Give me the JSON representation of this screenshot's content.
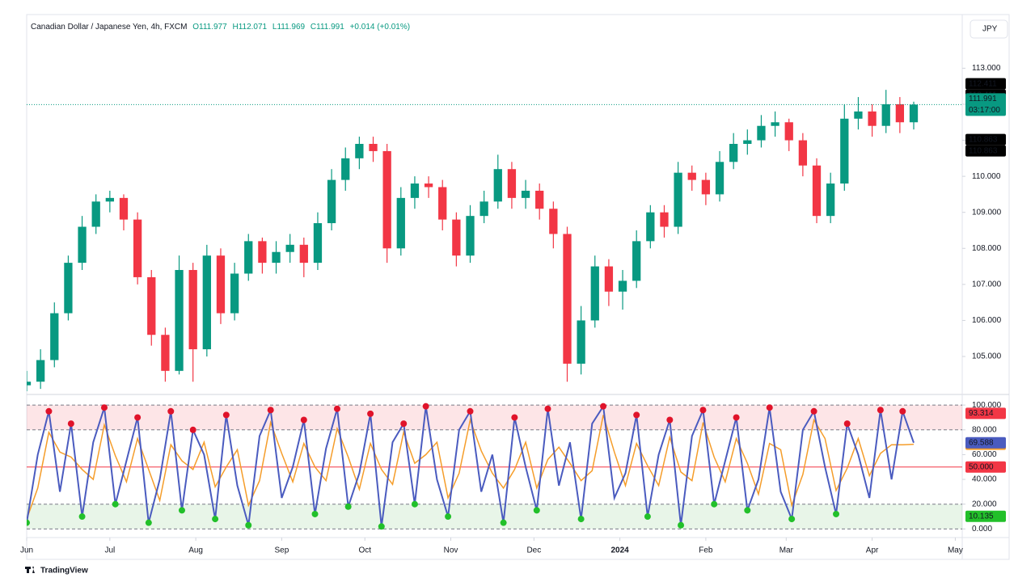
{
  "header": {
    "symbol": "Canadian Dollar / Japanese Yen, 4h, FXCM",
    "ohlc": [
      "O111.977",
      "H112.071",
      "L111.969",
      "C111.991",
      "+0.014 (+0.01%)"
    ],
    "currency": "JPY"
  },
  "chart_data": [
    {
      "type": "candlestick",
      "x": [
        0,
        5,
        10,
        15,
        20,
        25,
        30,
        35,
        40,
        45,
        50,
        55,
        60,
        65,
        70,
        75,
        80,
        85,
        90,
        95,
        100,
        105,
        110,
        115,
        120,
        125,
        130,
        135,
        140,
        145,
        150,
        155,
        160,
        165,
        170,
        175,
        180,
        185,
        190,
        195,
        200,
        205,
        210,
        215,
        220,
        225,
        230,
        235,
        240,
        245,
        250,
        255,
        260,
        265,
        270,
        275,
        280,
        285,
        290,
        295,
        300,
        305,
        310,
        315,
        320
      ],
      "open": [
        104.2,
        104.3,
        104.9,
        106.2,
        107.6,
        108.6,
        109.3,
        109.4,
        108.8,
        107.2,
        105.6,
        104.6,
        107.4,
        105.2,
        107.8,
        106.2,
        107.3,
        108.2,
        107.6,
        107.9,
        108.1,
        107.6,
        108.7,
        109.9,
        110.5,
        110.9,
        110.7,
        108.0,
        109.4,
        109.8,
        109.7,
        108.8,
        107.8,
        108.9,
        109.3,
        110.2,
        109.4,
        109.6,
        109.1,
        108.4,
        104.8,
        106.0,
        107.5,
        106.8,
        107.1,
        108.2,
        109.0,
        108.6,
        110.1,
        109.9,
        109.5,
        110.4,
        110.9,
        111.0,
        111.4,
        111.5,
        111.0,
        110.3,
        108.9,
        109.8,
        111.6,
        111.8,
        111.4,
        112.0,
        111.5
      ],
      "high": [
        104.6,
        105.2,
        106.5,
        107.8,
        108.9,
        109.5,
        109.6,
        109.5,
        109.0,
        107.4,
        105.8,
        107.8,
        107.6,
        108.1,
        108.0,
        107.6,
        108.4,
        108.3,
        108.2,
        108.4,
        108.3,
        109.0,
        110.2,
        110.8,
        111.1,
        111.1,
        110.9,
        109.7,
        110.0,
        110.0,
        109.9,
        109.0,
        109.2,
        109.6,
        110.6,
        110.4,
        109.9,
        109.8,
        109.3,
        108.6,
        106.4,
        107.8,
        107.7,
        107.4,
        108.5,
        109.2,
        109.2,
        110.4,
        110.3,
        110.1,
        110.7,
        111.2,
        111.3,
        111.7,
        111.8,
        111.6,
        111.2,
        110.5,
        110.1,
        112.0,
        112.2,
        112.0,
        112.4,
        112.2,
        112.071
      ],
      "low": [
        104.0,
        104.1,
        104.7,
        106.0,
        107.4,
        108.4,
        109.0,
        108.5,
        107.0,
        105.3,
        104.3,
        104.5,
        104.3,
        105.0,
        105.9,
        106.0,
        107.1,
        107.3,
        107.3,
        107.6,
        107.2,
        107.4,
        108.5,
        109.6,
        110.2,
        110.4,
        107.6,
        107.8,
        109.1,
        109.4,
        108.5,
        107.5,
        107.6,
        108.7,
        109.1,
        109.1,
        109.1,
        108.8,
        108.0,
        104.3,
        104.5,
        105.8,
        106.4,
        106.3,
        106.9,
        108.0,
        108.3,
        108.4,
        109.6,
        109.2,
        109.3,
        110.2,
        110.6,
        110.8,
        111.1,
        110.7,
        110.0,
        108.7,
        108.7,
        109.6,
        111.3,
        111.1,
        111.2,
        111.2,
        111.3
      ],
      "close": [
        104.3,
        104.9,
        106.2,
        107.6,
        108.6,
        109.3,
        109.4,
        108.8,
        107.2,
        105.6,
        104.6,
        107.4,
        105.2,
        107.8,
        106.2,
        107.3,
        108.2,
        107.6,
        107.9,
        108.1,
        107.6,
        108.7,
        109.9,
        110.5,
        110.9,
        110.7,
        108.0,
        109.4,
        109.8,
        109.7,
        108.8,
        107.8,
        108.9,
        109.3,
        110.2,
        109.4,
        109.6,
        109.1,
        108.4,
        104.8,
        106.0,
        107.5,
        106.8,
        107.1,
        108.2,
        109.0,
        108.6,
        110.1,
        109.9,
        109.5,
        110.4,
        110.9,
        111.0,
        111.4,
        111.5,
        111.0,
        110.3,
        108.9,
        109.8,
        111.6,
        111.8,
        111.4,
        112.0,
        111.5,
        111.991
      ],
      "up_color": "#089981",
      "down_color": "#f23645",
      "xlim": [
        0,
        337.5
      ],
      "xticks": [
        {
          "value": 0,
          "label": "Jun"
        },
        {
          "value": 30,
          "label": "Jul"
        },
        {
          "value": 61,
          "label": "Aug"
        },
        {
          "value": 92,
          "label": "Sep"
        },
        {
          "value": 122,
          "label": "Oct"
        },
        {
          "value": 153,
          "label": "Nov"
        },
        {
          "value": 183,
          "label": "Dec"
        },
        {
          "value": 214,
          "label": "2024"
        },
        {
          "value": 245,
          "label": "Feb"
        },
        {
          "value": 274,
          "label": "Mar"
        },
        {
          "value": 305,
          "label": "Apr"
        },
        {
          "value": 335,
          "label": "May"
        }
      ],
      "ylim": [
        104.08,
        114.4
      ],
      "yticks": [
        {
          "value": 105,
          "label": "105.000"
        },
        {
          "value": 106,
          "label": "106.000"
        },
        {
          "value": 107,
          "label": "107.000"
        },
        {
          "value": 108,
          "label": "108.000"
        },
        {
          "value": 109,
          "label": "109.000"
        },
        {
          "value": 110,
          "label": "110.000"
        },
        {
          "value": 111,
          "label": "111.000"
        },
        {
          "value": 112,
          "label": "112.000"
        },
        {
          "value": 113,
          "label": "113.000"
        }
      ],
      "price_markers": [
        112.411,
        112.411,
        110.863,
        110.863
      ],
      "countdown": "03:17:00",
      "grid": false
    },
    {
      "type": "line",
      "x": [
        0,
        4,
        8,
        12,
        16,
        20,
        24,
        28,
        32,
        36,
        40,
        44,
        48,
        52,
        56,
        60,
        64,
        68,
        72,
        76,
        80,
        84,
        88,
        92,
        96,
        100,
        104,
        108,
        112,
        116,
        120,
        124,
        128,
        132,
        136,
        140,
        144,
        148,
        152,
        156,
        160,
        164,
        168,
        172,
        176,
        180,
        184,
        188,
        192,
        196,
        200,
        204,
        208,
        212,
        216,
        220,
        224,
        228,
        232,
        236,
        240,
        244,
        248,
        252,
        256,
        260,
        264,
        268,
        272,
        276,
        280,
        284,
        288,
        292,
        296,
        300,
        304,
        308,
        312,
        316,
        320
      ],
      "series": [
        {
          "color": "#f59d2a",
          "values": [
            8,
            33,
            78,
            62,
            58,
            48,
            40,
            84,
            59,
            38,
            73,
            48,
            23,
            68,
            55,
            48,
            70,
            34,
            50,
            64,
            19,
            39,
            86,
            61,
            38,
            69,
            50,
            39,
            81,
            58,
            32,
            69,
            48,
            36,
            78,
            53,
            60,
            70,
            25,
            45,
            88,
            63,
            45,
            33,
            48,
            70,
            33,
            56,
            66,
            53,
            39,
            47,
            92,
            62,
            35,
            69,
            51,
            35,
            74,
            46,
            39,
            86,
            58,
            38,
            73,
            53,
            28,
            69,
            64,
            19,
            44,
            88,
            73,
            31,
            49,
            73,
            43,
            61,
            68,
            68,
            68.341
          ]
        },
        {
          "color": "#4a5bbf",
          "values": [
            5,
            60,
            95,
            30,
            85,
            10,
            70,
            98,
            20,
            55,
            90,
            5,
            40,
            95,
            15,
            80,
            60,
            8,
            92,
            35,
            3,
            75,
            96,
            25,
            50,
            88,
            12,
            65,
            97,
            18,
            45,
            93,
            2,
            70,
            85,
            20,
            99,
            40,
            10,
            80,
            95,
            30,
            60,
            5,
            90,
            50,
            15,
            97,
            35,
            70,
            8,
            85,
            99,
            25,
            45,
            92,
            10,
            60,
            88,
            3,
            75,
            96,
            20,
            55,
            90,
            15,
            40,
            98,
            30,
            8,
            80,
            95,
            50,
            12,
            85,
            60,
            25,
            96,
            40,
            95,
            69.588
          ]
        }
      ],
      "xlim": [
        0,
        337.5
      ],
      "ylim": [
        -5,
        104
      ],
      "yticks": [
        {
          "value": 0,
          "label": "0.000"
        },
        {
          "value": 20,
          "label": "20.000"
        },
        {
          "value": 40,
          "label": "40.000"
        },
        {
          "value": 60,
          "label": "60.000"
        },
        {
          "value": 80,
          "label": "80.000"
        },
        {
          "value": 100,
          "label": "100.000"
        }
      ],
      "upper_band": [
        80,
        100
      ],
      "lower_band": [
        0,
        20
      ],
      "levels": [
        {
          "value": 93.314,
          "color": "#f23645"
        },
        {
          "value": 50,
          "label": "50.000",
          "color": "#f23645"
        },
        {
          "value": 10.135,
          "color": "#22c02a"
        }
      ]
    }
  ],
  "footer": {
    "brand": "TradingView"
  }
}
